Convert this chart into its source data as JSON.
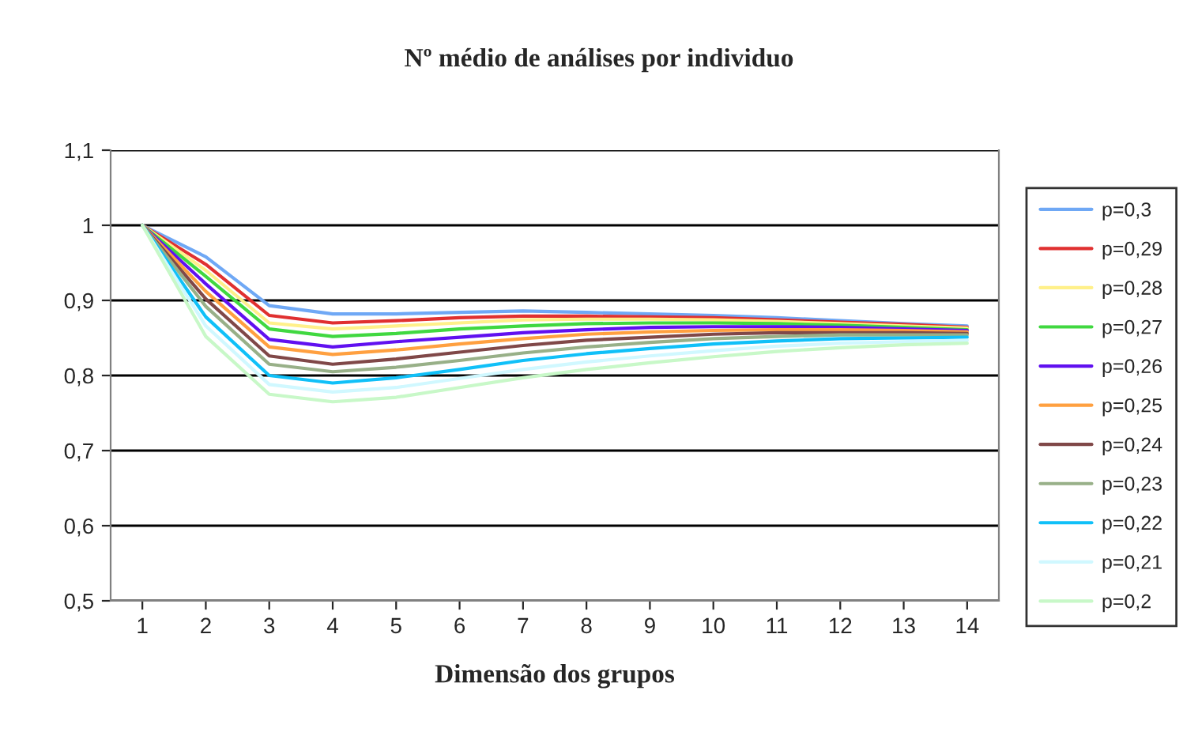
{
  "chart_data": {
    "type": "line",
    "title": "Nº médio de análises por individuo",
    "xlabel": "Dimensão dos grupos",
    "categories": [
      "1",
      "2",
      "3",
      "4",
      "5",
      "6",
      "7",
      "8",
      "9",
      "10",
      "11",
      "12",
      "13",
      "14"
    ],
    "ylim": [
      0.5,
      1.1
    ],
    "yticks": [
      {
        "value": 0.5,
        "label": "0,5"
      },
      {
        "value": 0.6,
        "label": "0,6"
      },
      {
        "value": 0.7,
        "label": "0,7"
      },
      {
        "value": 0.8,
        "label": "0,8"
      },
      {
        "value": 0.9,
        "label": "0,9"
      },
      {
        "value": 1,
        "label": "1"
      },
      {
        "value": 1.1,
        "label": "1,1"
      }
    ],
    "grid": "y",
    "legend": "right",
    "marker": "none",
    "line_style": "solid",
    "series": [
      {
        "name": "p=0,3",
        "color": "#6fa8f5",
        "values": [
          1,
          0.958,
          0.893,
          0.882,
          0.882,
          0.884,
          0.886,
          0.884,
          0.882,
          0.88,
          0.877,
          0.873,
          0.869,
          0.866
        ]
      },
      {
        "name": "p=0,29",
        "color": "#e03030",
        "values": [
          1,
          0.948,
          0.88,
          0.87,
          0.873,
          0.877,
          0.879,
          0.879,
          0.878,
          0.877,
          0.874,
          0.871,
          0.868,
          0.864
        ]
      },
      {
        "name": "p=0,28",
        "color": "#fff08a",
        "values": [
          1,
          0.94,
          0.87,
          0.862,
          0.866,
          0.87,
          0.874,
          0.875,
          0.875,
          0.874,
          0.872,
          0.869,
          0.866,
          0.863
        ]
      },
      {
        "name": "p=0,27",
        "color": "#40d840",
        "values": [
          1,
          0.932,
          0.862,
          0.852,
          0.856,
          0.862,
          0.866,
          0.869,
          0.87,
          0.87,
          0.869,
          0.867,
          0.864,
          0.861
        ]
      },
      {
        "name": "p=0,26",
        "color": "#6010f0",
        "values": [
          1,
          0.922,
          0.848,
          0.838,
          0.845,
          0.851,
          0.857,
          0.861,
          0.864,
          0.865,
          0.865,
          0.864,
          0.862,
          0.86
        ]
      },
      {
        "name": "p=0,25",
        "color": "#ffa040",
        "values": [
          1,
          0.912,
          0.838,
          0.828,
          0.834,
          0.842,
          0.849,
          0.855,
          0.858,
          0.86,
          0.861,
          0.861,
          0.86,
          0.858
        ]
      },
      {
        "name": "p=0,24",
        "color": "#804848",
        "values": [
          1,
          0.902,
          0.826,
          0.815,
          0.822,
          0.831,
          0.84,
          0.847,
          0.851,
          0.855,
          0.857,
          0.857,
          0.857,
          0.856
        ]
      },
      {
        "name": "p=0,23",
        "color": "#98b088",
        "values": [
          1,
          0.892,
          0.815,
          0.805,
          0.811,
          0.82,
          0.83,
          0.838,
          0.844,
          0.849,
          0.852,
          0.854,
          0.854,
          0.854
        ]
      },
      {
        "name": "p=0,22",
        "color": "#10c0f8",
        "values": [
          1,
          0.878,
          0.8,
          0.79,
          0.797,
          0.808,
          0.82,
          0.829,
          0.836,
          0.842,
          0.846,
          0.849,
          0.85,
          0.851
        ]
      },
      {
        "name": "p=0,21",
        "color": "#d0f8ff",
        "values": [
          1,
          0.866,
          0.788,
          0.778,
          0.784,
          0.796,
          0.808,
          0.818,
          0.826,
          0.833,
          0.839,
          0.843,
          0.845,
          0.847
        ]
      },
      {
        "name": "p=0,2",
        "color": "#c8f8c8",
        "values": [
          1,
          0.852,
          0.775,
          0.765,
          0.771,
          0.784,
          0.797,
          0.808,
          0.817,
          0.825,
          0.832,
          0.837,
          0.841,
          0.843
        ]
      }
    ]
  }
}
